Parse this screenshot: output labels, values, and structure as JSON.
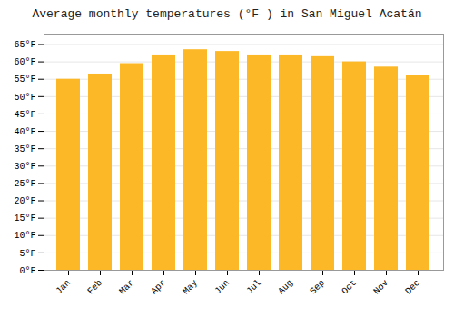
{
  "chart_data": {
    "type": "bar",
    "title": "Average monthly temperatures (°F ) in San Miguel Acatán",
    "categories": [
      "Jan",
      "Feb",
      "Mar",
      "Apr",
      "May",
      "Jun",
      "Jul",
      "Aug",
      "Sep",
      "Oct",
      "Nov",
      "Dec"
    ],
    "values": [
      55.0,
      56.5,
      59.5,
      62.0,
      63.5,
      63.0,
      62.0,
      62.0,
      61.5,
      60.0,
      58.5,
      56.0
    ],
    "color": "#FDB827",
    "ylim": [
      0,
      68
    ],
    "yticks": [
      {
        "value": 0,
        "label": "0°F"
      },
      {
        "value": 5,
        "label": "5°F"
      },
      {
        "value": 10,
        "label": "10°F"
      },
      {
        "value": 15,
        "label": "15°F"
      },
      {
        "value": 20,
        "label": "20°F"
      },
      {
        "value": 25,
        "label": "25°F"
      },
      {
        "value": 30,
        "label": "30°F"
      },
      {
        "value": 35,
        "label": "35°F"
      },
      {
        "value": 40,
        "label": "40°F"
      },
      {
        "value": 45,
        "label": "45°F"
      },
      {
        "value": 50,
        "label": "50°F"
      },
      {
        "value": 55,
        "label": "55°F"
      },
      {
        "value": 60,
        "label": "60°F"
      },
      {
        "value": 65,
        "label": "65°F"
      }
    ],
    "grid": true
  }
}
